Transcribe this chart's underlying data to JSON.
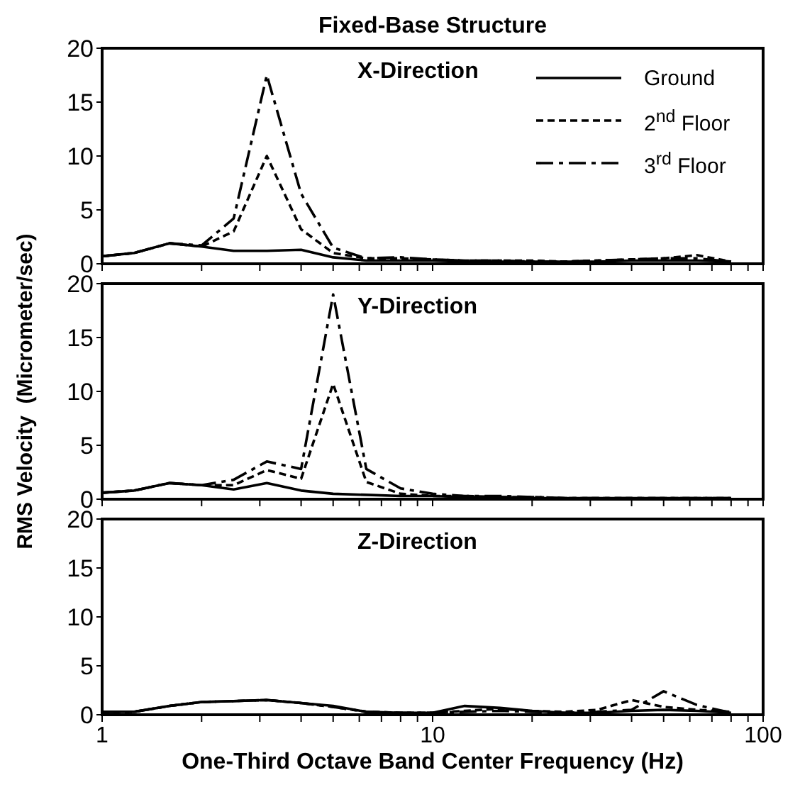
{
  "chart_data": [
    {
      "type": "line",
      "title": "Fixed-Base Structure",
      "annotations": [
        "X-Direction"
      ],
      "x": [
        1,
        1.25,
        1.6,
        2,
        2.5,
        3.15,
        4,
        5,
        6.3,
        8,
        10,
        12.5,
        16,
        20,
        25,
        31.5,
        40,
        50,
        63,
        80
      ],
      "xlim": [
        1,
        100
      ],
      "xticks": [
        {
          "value": 1,
          "label": null
        },
        {
          "value": 2,
          "label": null
        },
        {
          "value": 3,
          "label": null
        },
        {
          "value": 4,
          "label": null
        },
        {
          "value": 5,
          "label": null
        },
        {
          "value": 6,
          "label": null
        },
        {
          "value": 7,
          "label": null
        },
        {
          "value": 8,
          "label": null
        },
        {
          "value": 9,
          "label": null
        },
        {
          "value": 10,
          "label": null
        },
        {
          "value": 20,
          "label": null
        },
        {
          "value": 30,
          "label": null
        },
        {
          "value": 40,
          "label": null
        },
        {
          "value": 50,
          "label": null
        },
        {
          "value": 60,
          "label": null
        },
        {
          "value": 70,
          "label": null
        },
        {
          "value": 80,
          "label": null
        },
        {
          "value": 90,
          "label": null
        },
        {
          "value": 100,
          "label": null
        }
      ],
      "log": "x",
      "ylim": [
        0,
        20
      ],
      "yticks": [
        0,
        5,
        10,
        15,
        20
      ],
      "tick_labels": "y",
      "legend": "top right",
      "grid": false,
      "marker": "none",
      "series": [
        {
          "name": "Ground",
          "color": "#000000",
          "line_style": "solid",
          "values": [
            0.7,
            1.0,
            1.9,
            1.6,
            1.2,
            1.2,
            1.3,
            0.6,
            0.3,
            0.3,
            0.3,
            0.2,
            0.2,
            0.2,
            0.2,
            0.2,
            0.3,
            0.3,
            0.3,
            0.2
          ]
        },
        {
          "name": "2$^{nd}$ Floor",
          "color": "#000000",
          "line_style": "dashed",
          "values": [
            0.7,
            1.0,
            1.9,
            1.6,
            3.0,
            10.0,
            3.2,
            1.0,
            0.5,
            0.5,
            0.4,
            0.3,
            0.3,
            0.3,
            0.2,
            0.3,
            0.4,
            0.5,
            0.8,
            0.2
          ]
        },
        {
          "name": "3$^{rd}$ Floor",
          "color": "#000000",
          "line_style": "dashdot",
          "values": [
            0.7,
            1.0,
            1.9,
            1.7,
            4.2,
            17.5,
            6.5,
            1.5,
            0.5,
            0.6,
            0.4,
            0.3,
            0.3,
            0.2,
            0.2,
            0.3,
            0.4,
            0.5,
            0.5,
            0.2
          ]
        }
      ]
    },
    {
      "type": "line",
      "annotations": [
        "Y-Direction"
      ],
      "ylabel": "RMS Velocity  (Micrometer/sec)",
      "x": [
        1,
        1.25,
        1.6,
        2,
        2.5,
        3.15,
        4,
        5,
        6.3,
        8,
        10,
        12.5,
        16,
        20,
        25,
        31.5,
        40,
        50,
        63,
        80
      ],
      "xlim": [
        1,
        100
      ],
      "xticks": [
        {
          "value": 1,
          "label": null
        },
        {
          "value": 2,
          "label": null
        },
        {
          "value": 3,
          "label": null
        },
        {
          "value": 4,
          "label": null
        },
        {
          "value": 5,
          "label": null
        },
        {
          "value": 6,
          "label": null
        },
        {
          "value": 7,
          "label": null
        },
        {
          "value": 8,
          "label": null
        },
        {
          "value": 9,
          "label": null
        },
        {
          "value": 10,
          "label": null
        },
        {
          "value": 20,
          "label": null
        },
        {
          "value": 30,
          "label": null
        },
        {
          "value": 40,
          "label": null
        },
        {
          "value": 50,
          "label": null
        },
        {
          "value": 60,
          "label": null
        },
        {
          "value": 70,
          "label": null
        },
        {
          "value": 80,
          "label": null
        },
        {
          "value": 90,
          "label": null
        },
        {
          "value": 100,
          "label": null
        }
      ],
      "log": "x",
      "ylim": [
        0,
        20
      ],
      "yticks": [
        0,
        5,
        10,
        15,
        20
      ],
      "tick_labels": "y",
      "grid": false,
      "marker": "none",
      "series": [
        {
          "color": "#000000",
          "line_style": "solid",
          "values": [
            0.6,
            0.8,
            1.5,
            1.3,
            0.9,
            1.5,
            0.8,
            0.5,
            0.4,
            0.3,
            0.3,
            0.2,
            0.2,
            0.1,
            0.1,
            0.1,
            0.1,
            0.1,
            0.1,
            0.1
          ]
        },
        {
          "color": "#000000",
          "line_style": "dashed",
          "values": [
            0.6,
            0.8,
            1.5,
            1.3,
            1.3,
            2.7,
            1.9,
            10.7,
            1.6,
            0.5,
            0.3,
            0.3,
            0.2,
            0.2,
            0.1,
            0.1,
            0.1,
            0.1,
            0.1,
            0.1
          ]
        },
        {
          "color": "#000000",
          "line_style": "dashdot",
          "values": [
            0.6,
            0.8,
            1.5,
            1.3,
            1.8,
            3.5,
            2.8,
            19.0,
            2.8,
            1.0,
            0.5,
            0.3,
            0.3,
            0.2,
            0.1,
            0.1,
            0.1,
            0.1,
            0.1,
            0.1
          ]
        }
      ]
    },
    {
      "type": "line",
      "annotations": [
        "Z-Direction"
      ],
      "xlabel": "One-Third Octave Band Center Frequency (Hz)",
      "x": [
        1,
        1.25,
        1.6,
        2,
        2.5,
        3.15,
        4,
        5,
        6.3,
        8,
        10,
        12.5,
        16,
        20,
        25,
        31.5,
        40,
        50,
        63,
        80
      ],
      "xlim": [
        1,
        100
      ],
      "xticks": [
        1,
        {
          "value": 2,
          "label": null
        },
        {
          "value": 3,
          "label": null
        },
        {
          "value": 4,
          "label": null
        },
        {
          "value": 5,
          "label": null
        },
        {
          "value": 6,
          "label": null
        },
        {
          "value": 7,
          "label": null
        },
        {
          "value": 8,
          "label": null
        },
        {
          "value": 9,
          "label": null
        },
        10,
        {
          "value": 20,
          "label": null
        },
        {
          "value": 30,
          "label": null
        },
        {
          "value": 40,
          "label": null
        },
        {
          "value": 50,
          "label": null
        },
        {
          "value": 60,
          "label": null
        },
        {
          "value": 70,
          "label": null
        },
        {
          "value": 80,
          "label": null
        },
        {
          "value": 90,
          "label": null
        },
        100
      ],
      "log": "x",
      "ylim": [
        0,
        20
      ],
      "yticks": [
        0,
        5,
        10,
        15,
        20
      ],
      "grid": false,
      "marker": "none",
      "series": [
        {
          "color": "#000000",
          "line_style": "solid",
          "values": [
            0.3,
            0.3,
            0.9,
            1.3,
            1.4,
            1.5,
            1.2,
            0.9,
            0.3,
            0.2,
            0.2,
            0.9,
            0.7,
            0.4,
            0.2,
            0.2,
            0.4,
            0.5,
            0.4,
            0.2
          ]
        },
        {
          "color": "#000000",
          "line_style": "dashed",
          "values": [
            0.3,
            0.3,
            0.9,
            1.3,
            1.4,
            1.5,
            1.2,
            0.8,
            0.3,
            0.2,
            0.2,
            0.4,
            0.6,
            0.4,
            0.3,
            0.5,
            1.5,
            0.8,
            0.5,
            0.3
          ]
        },
        {
          "color": "#000000",
          "line_style": "dashdot",
          "values": [
            0.3,
            0.3,
            0.9,
            1.3,
            1.4,
            1.5,
            1.2,
            0.8,
            0.3,
            0.2,
            0.2,
            0.3,
            0.4,
            0.3,
            0.2,
            0.3,
            0.5,
            2.4,
            1.0,
            0.2
          ]
        }
      ]
    }
  ]
}
